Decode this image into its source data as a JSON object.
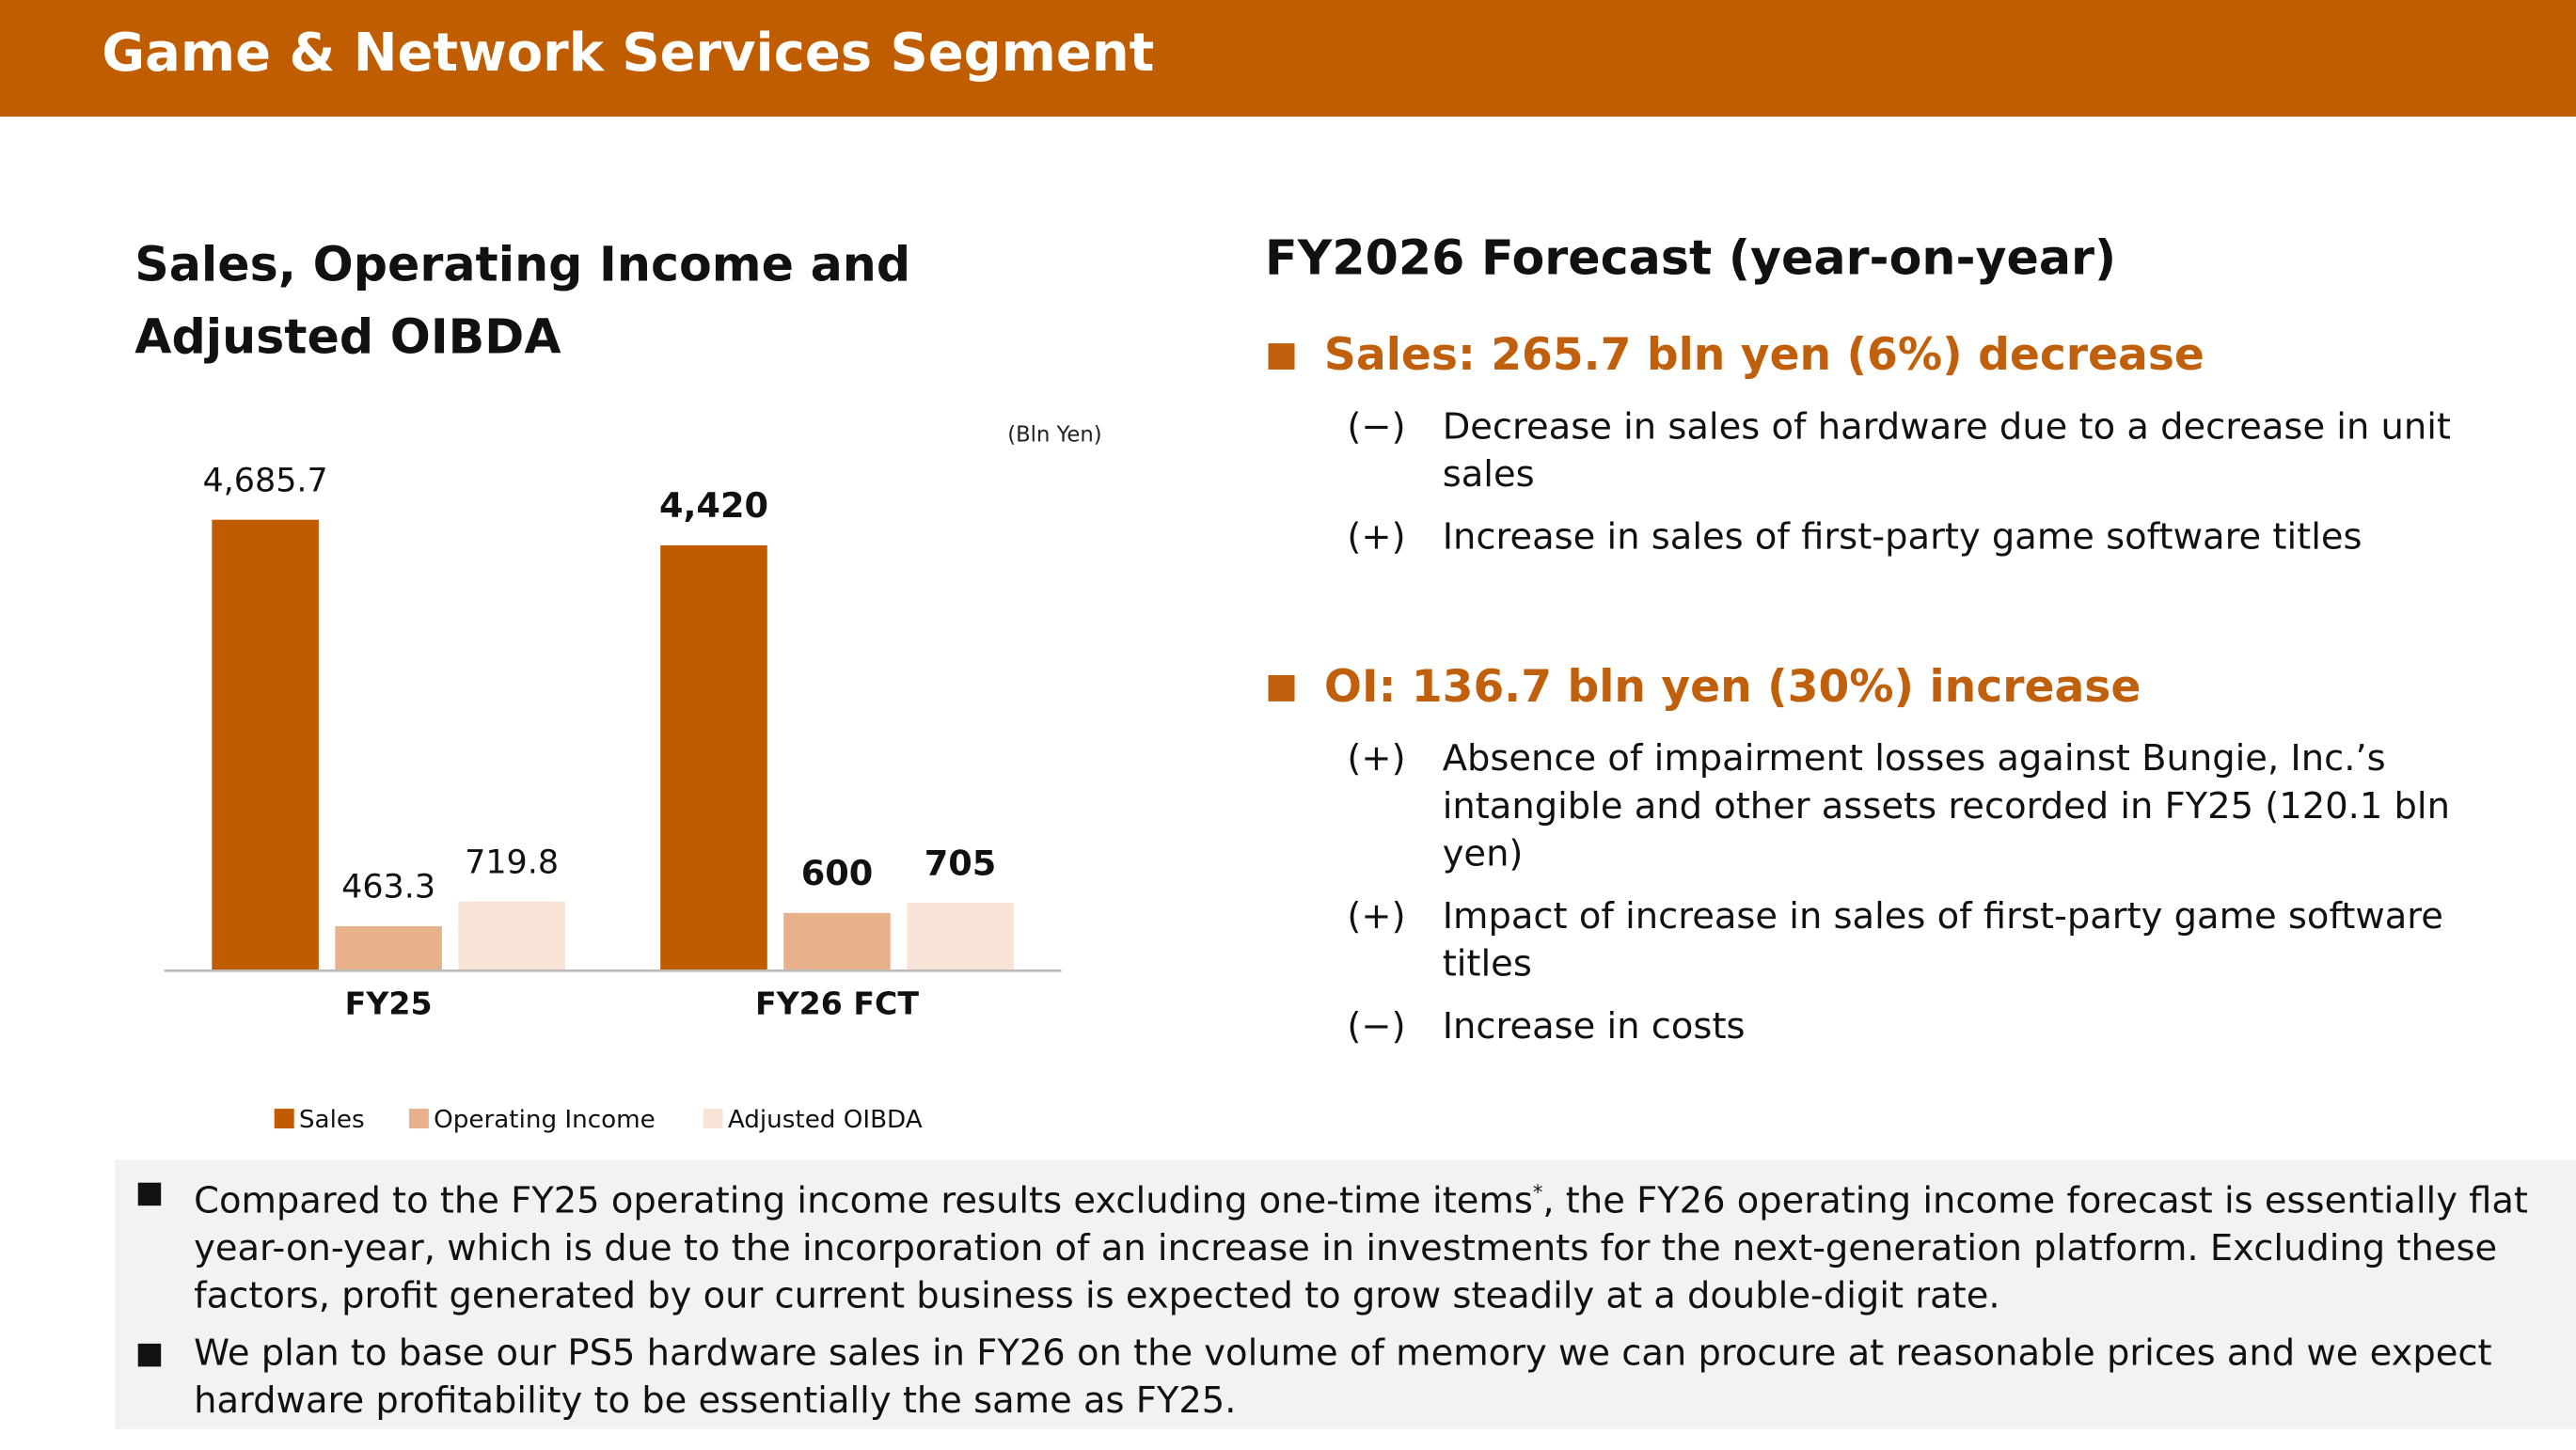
{
  "header": {
    "title": "Game & Network Services Segment"
  },
  "chart_data": {
    "type": "bar",
    "title": "Sales, Operating Income and Adjusted OIBDA",
    "unit": "(Bln Yen)",
    "categories": [
      "FY25",
      "FY26 FCT"
    ],
    "series": [
      {
        "name": "Sales",
        "color": "#c05b00",
        "values": [
          4685.7,
          4420
        ],
        "value_labels": [
          "4,685.7",
          "4,420"
        ]
      },
      {
        "name": "Operating Income",
        "color": "#e8b18b",
        "values": [
          463.3,
          600
        ]
      },
      {
        "name": "Adjusted OIBDA",
        "color": "#f8e3d7",
        "values": [
          719.8,
          705
        ]
      }
    ],
    "ylim": [
      0,
      5000
    ],
    "grid": false,
    "legend": "bottom"
  },
  "forecast": {
    "title": "FY2026 Forecast (year-on-year)",
    "sections": [
      {
        "heading": "Sales: 265.7 bln yen (6%) decrease",
        "items": [
          {
            "mark": "(−)",
            "text": "Decrease in sales of hardware due to a decrease in unit sales"
          },
          {
            "mark": "(+)",
            "text": "Increase in sales of first-party game software titles"
          }
        ]
      },
      {
        "heading": "OI: 136.7 bln yen (30%) increase",
        "items": [
          {
            "mark": "(+)",
            "text": "Absence of impairment losses against Bungie, Inc.’s intangible and other assets recorded in FY25 (120.1 bln yen)"
          },
          {
            "mark": "(+)",
            "text": "Impact of increase in sales of first-party game software titles"
          },
          {
            "mark": "(−)",
            "text": "Increase in costs"
          }
        ]
      }
    ]
  },
  "notes": [
    {
      "before": "Compared to the FY25 operating income results excluding one-time items",
      "sup": "*",
      "after": ", the FY26 operating income forecast is essentially flat year-on-year, which is due to the incorporation of an increase in investments for the next-generation platform. Excluding these factors, profit generated by our current business is expected to grow steadily at a double-digit rate."
    },
    {
      "before": "We plan to base our PS5 hardware sales in FY26 on the volume of memory we can procure at reasonable prices and we expect hardware profitability to be essentially the same as FY25."
    }
  ]
}
